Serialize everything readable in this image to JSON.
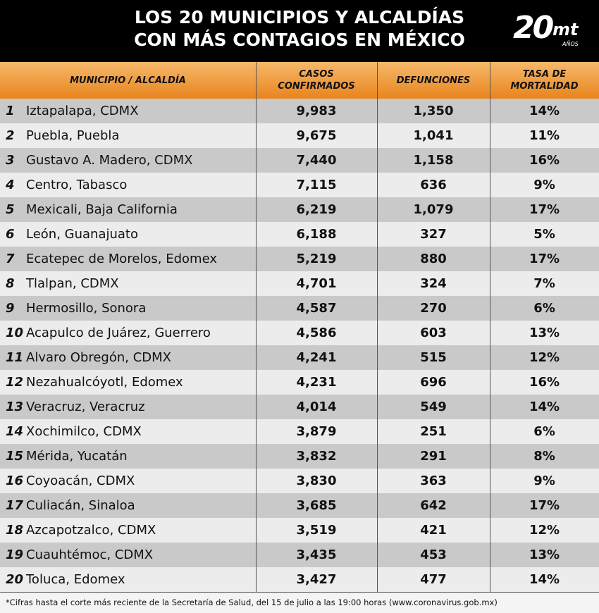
{
  "header": {
    "title_lines": [
      "LOS 20 MUNICIPIOS Y ALCALDÍAS",
      "CON MÁS CONTAGIOS EN MÉXICO"
    ],
    "logo": {
      "number": "20",
      "brand": "mt",
      "sub": "AÑOS"
    }
  },
  "table": {
    "columns": [
      "MUNICIPIO / ALCALDÍA",
      [
        "CASOS",
        "CONFIRMADOS"
      ],
      "DEFUNCIONES",
      [
        "TASA DE",
        "MORTALIDAD"
      ]
    ],
    "rows": [
      [
        "1",
        "Iztapalapa, CDMX",
        "9,983",
        "1,350",
        "14%"
      ],
      [
        "2",
        "Puebla, Puebla",
        "9,675",
        "1,041",
        "11%"
      ],
      [
        "3",
        "Gustavo A. Madero, CDMX",
        "7,440",
        "1,158",
        "16%"
      ],
      [
        "4",
        "Centro, Tabasco",
        "7,115",
        "636",
        "9%"
      ],
      [
        "5",
        "Mexicali, Baja California",
        "6,219",
        "1,079",
        "17%"
      ],
      [
        "6",
        "León, Guanajuato",
        "6,188",
        "327",
        "5%"
      ],
      [
        "7",
        "Ecatepec de Morelos, Edomex",
        "5,219",
        "880",
        "17%"
      ],
      [
        "8",
        "Tlalpan, CDMX",
        "4,701",
        "324",
        "7%"
      ],
      [
        "9",
        "Hermosillo, Sonora",
        "4,587",
        "270",
        "6%"
      ],
      [
        "10",
        "Acapulco de Juárez, Guerrero",
        "4,586",
        "603",
        "13%"
      ],
      [
        "11",
        "Alvaro Obregón, CDMX",
        "4,241",
        "515",
        "12%"
      ],
      [
        "12",
        "Nezahualcóyotl, Edomex",
        "4,231",
        "696",
        "16%"
      ],
      [
        "13",
        "Veracruz, Veracruz",
        "4,014",
        "549",
        "14%"
      ],
      [
        "14",
        "Xochimilco, CDMX",
        "3,879",
        "251",
        "6%"
      ],
      [
        "15",
        "Mérida, Yucatán",
        "3,832",
        "291",
        "8%"
      ],
      [
        "16",
        "Coyoacán, CDMX",
        "3,830",
        "363",
        "9%"
      ],
      [
        "17",
        "Culiacán, Sinaloa",
        "3,685",
        "642",
        "17%"
      ],
      [
        "18",
        "Azcapotzalco, CDMX",
        "3,519",
        "421",
        "12%"
      ],
      [
        "19",
        "Cuauhtémoc, CDMX",
        "3,435",
        "453",
        "13%"
      ],
      [
        "20",
        "Toluca, Edomex",
        "3,427",
        "477",
        "14%"
      ]
    ]
  },
  "footnote": "*Cifras hasta el corte más reciente de la Secretaría de Salud, del 15 de julio a las 19:00 horas (www.coronavirus.gob.mx)"
}
